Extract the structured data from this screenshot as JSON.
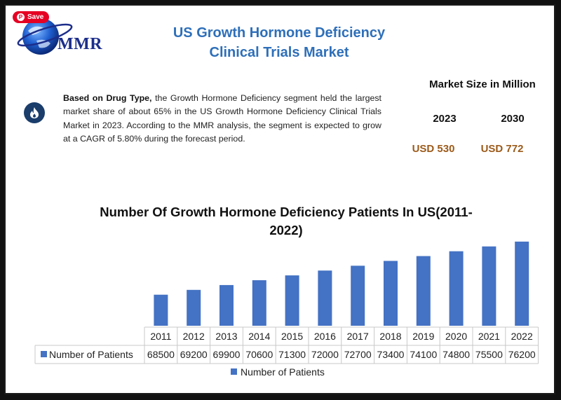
{
  "save_button": {
    "label": "Save",
    "icon": "pinterest-icon"
  },
  "logo": {
    "text": "MMR"
  },
  "header": {
    "title_line1": "US Growth Hormone Deficiency",
    "title_line2": "Clinical Trials Market"
  },
  "summary": {
    "bold": "Based on Drug Type,",
    "text": " the Growth Hormone Deficiency segment held the largest market share of about 65% in the US Growth Hormone Deficiency Clinical Trials Market in 2023. According to the MMR analysis, the segment is expected to grow at a CAGR of 5.80% during the forecast period."
  },
  "market_size": {
    "title": "Market Size in Million",
    "year1": "2023",
    "year2": "2030",
    "value1": "USD 530",
    "value2": "USD 772"
  },
  "colors": {
    "title": "#2e6fb9",
    "bar": "#4472c4",
    "value": "#9b5a1a"
  },
  "chart_data": {
    "type": "bar",
    "title_line1": "Number Of Growth Hormone Deficiency Patients In US(2011-",
    "title_line2": "2022)",
    "categories": [
      "2011",
      "2012",
      "2013",
      "2014",
      "2015",
      "2016",
      "2017",
      "2018",
      "2019",
      "2020",
      "2021",
      "2022"
    ],
    "series": [
      {
        "name": "Number of Patients",
        "values": [
          68500,
          69200,
          69900,
          70600,
          71300,
          72000,
          72700,
          73400,
          74100,
          74800,
          75500,
          76200
        ]
      }
    ],
    "ylim": [
      64000,
      77000
    ],
    "grid": false,
    "legend": "bottom",
    "data_table": true
  }
}
